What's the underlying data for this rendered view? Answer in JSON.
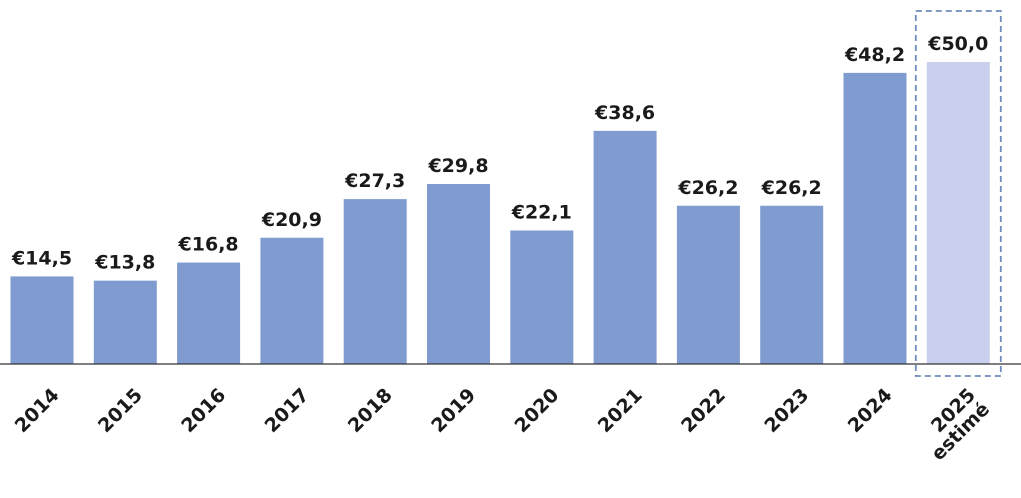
{
  "chart_data": {
    "type": "bar",
    "categories": [
      "2014",
      "2015",
      "2016",
      "2017",
      "2018",
      "2019",
      "2020",
      "2021",
      "2022",
      "2023",
      "2024",
      "2025"
    ],
    "category_sublabels": [
      "",
      "",
      "",
      "",
      "",
      "",
      "",
      "",
      "",
      "",
      "",
      "estimé"
    ],
    "values": [
      14.5,
      13.8,
      16.8,
      20.9,
      27.3,
      29.8,
      22.1,
      38.6,
      26.2,
      26.2,
      48.2,
      50.0
    ],
    "value_labels": [
      "€14,5",
      "€13,8",
      "€16,8",
      "€20,9",
      "€27,3",
      "€29,8",
      "€22,1",
      "€38,6",
      "€26,2",
      "€26,2",
      "€48,2",
      "€50,0"
    ],
    "estimated": [
      false,
      false,
      false,
      false,
      false,
      false,
      false,
      false,
      false,
      false,
      false,
      true
    ],
    "title": "",
    "xlabel": "",
    "ylabel": "",
    "ylim": [
      0,
      52
    ],
    "grid": false,
    "legend": "none",
    "colors": {
      "bar": "#7f9bd0",
      "bar_estimated": "#c9d0ed",
      "estimate_border": "#6f8bbd",
      "axis": "#333333",
      "text": "#1a1a1a"
    }
  }
}
